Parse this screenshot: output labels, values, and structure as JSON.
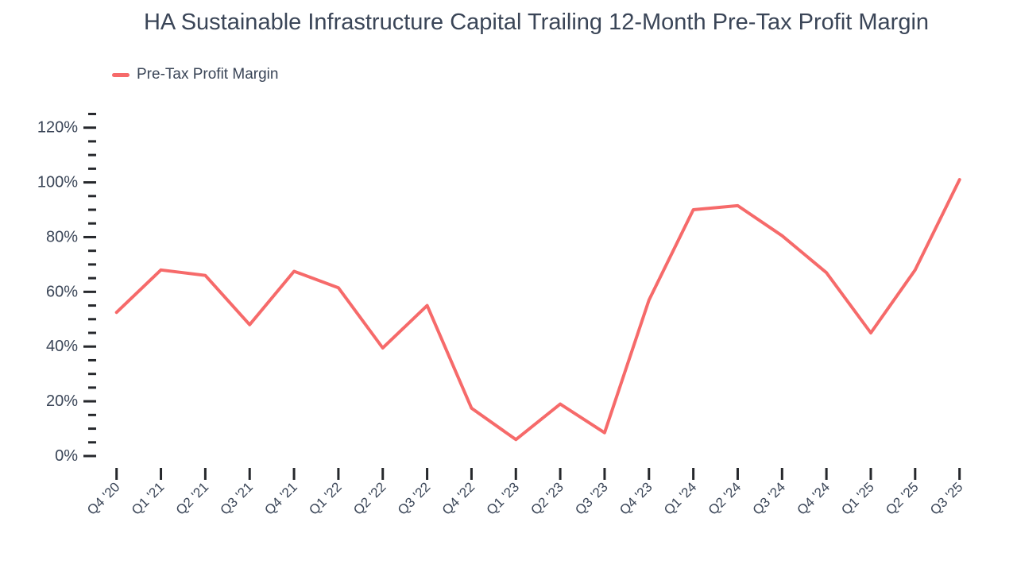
{
  "chart_data": {
    "type": "line",
    "title": "HA Sustainable Infrastructure Capital Trailing 12-Month Pre-Tax Profit Margin",
    "categories": [
      "Q4 '20",
      "Q1 '21",
      "Q2 '21",
      "Q3 '21",
      "Q4 '21",
      "Q1 '22",
      "Q2 '22",
      "Q3 '22",
      "Q4 '22",
      "Q1 '23",
      "Q2 '23",
      "Q3 '23",
      "Q4 '23",
      "Q1 '24",
      "Q2 '24",
      "Q3 '24",
      "Q4 '24",
      "Q1 '25",
      "Q2 '25",
      "Q3 '25"
    ],
    "series": [
      {
        "name": "Pre-Tax Profit Margin",
        "color": "#f66a6a",
        "values": [
          52.5,
          68,
          66,
          48,
          67.5,
          61.5,
          39.5,
          55,
          17.5,
          6,
          19,
          8.5,
          57,
          90,
          91.5,
          80.5,
          67,
          45,
          68,
          101
        ]
      }
    ],
    "xlabel": "",
    "ylabel": "",
    "ylim": [
      0,
      125
    ],
    "y_major_ticks": [
      0,
      20,
      40,
      60,
      80,
      100,
      120
    ],
    "y_minor_step": 5,
    "y_tick_suffix": "%",
    "grid": false,
    "legend_position": "top-left",
    "colors": {
      "line": "#f66a6a",
      "text": "#3a4557",
      "tick": "#26282c"
    }
  }
}
